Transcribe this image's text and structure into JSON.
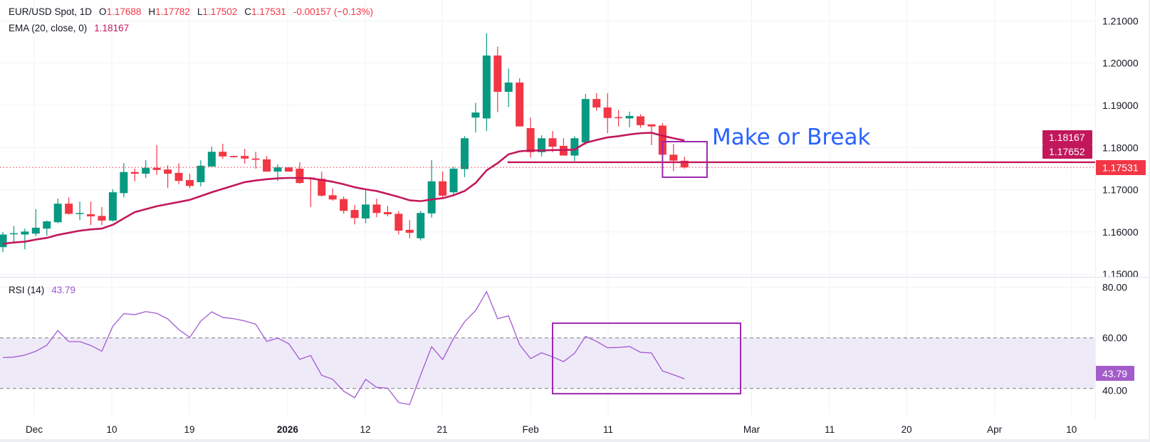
{
  "header": {
    "symbol": "EUR/USD Spot, 1D",
    "o_label": "O",
    "o_value": "1.17688",
    "h_label": "H",
    "h_value": "1.17782",
    "l_label": "L",
    "l_value": "1.17502",
    "c_label": "C",
    "c_value": "1.17531",
    "change": "-0.00157 (−0.13%)",
    "ema_label": "EMA (20, close, 0)",
    "ema_value": "1.18167",
    "rsi_label": "RSI (14)",
    "rsi_value": "43.79"
  },
  "colors": {
    "up": "#089981",
    "down": "#f23645",
    "ema": "#c2185b",
    "rsi": "#a15ad2",
    "annotation_box": "#9c27b0",
    "annotation_text": "#2962ff",
    "rsi_band": "#efeaf8"
  },
  "chart_data": [
    {
      "type": "candlestick",
      "title": "EUR/USD Spot, 1D",
      "ylim": [
        1.1495,
        1.2115
      ],
      "yticks": [
        1.21,
        1.2,
        1.19,
        1.18,
        1.17,
        1.16,
        1.15
      ],
      "ytick_labels": [
        "1.21000",
        "1.20000",
        "1.19000",
        "1.18000",
        "1.17000",
        "1.16000",
        "1.15000"
      ],
      "grid": true,
      "xaxis_labels": [
        {
          "bar": 2.85,
          "label": "Dec",
          "bold": false
        },
        {
          "bar": 9.91,
          "label": "10",
          "bold": false
        },
        {
          "bar": 16.97,
          "label": "19",
          "bold": false
        },
        {
          "bar": 25.9,
          "label": "2026",
          "bold": true
        },
        {
          "bar": 32.97,
          "label": "12",
          "bold": false
        },
        {
          "bar": 39.96,
          "label": "21",
          "bold": false
        },
        {
          "bar": 48.0,
          "label": "Feb",
          "bold": false
        },
        {
          "bar": 55.05,
          "label": "11",
          "bold": false
        },
        {
          "bar": 68.1,
          "label": "Mar",
          "bold": false
        },
        {
          "bar": 75.2,
          "label": "11",
          "bold": false
        },
        {
          "bar": 82.2,
          "label": "20",
          "bold": false
        },
        {
          "bar": 90.2,
          "label": "Apr",
          "bold": false
        },
        {
          "bar": 97.2,
          "label": "10",
          "bold": false
        }
      ],
      "ohlc": [
        [
          1.1564,
          1.16,
          1.1552,
          1.1594
        ],
        [
          1.1596,
          1.1614,
          1.1577,
          1.1597
        ],
        [
          1.1594,
          1.1608,
          1.1559,
          1.1601
        ],
        [
          1.1596,
          1.1654,
          1.159,
          1.161
        ],
        [
          1.1608,
          1.1627,
          1.1591,
          1.1625
        ],
        [
          1.1623,
          1.1679,
          1.1621,
          1.1667
        ],
        [
          1.1667,
          1.1682,
          1.1641,
          1.1643
        ],
        [
          1.1644,
          1.1672,
          1.1628,
          1.1645
        ],
        [
          1.1642,
          1.1672,
          1.1616,
          1.1637
        ],
        [
          1.1638,
          1.1659,
          1.1616,
          1.1627
        ],
        [
          1.1627,
          1.1701,
          1.1625,
          1.1694
        ],
        [
          1.1692,
          1.1763,
          1.1682,
          1.1742
        ],
        [
          1.1742,
          1.175,
          1.172,
          1.1738
        ],
        [
          1.1738,
          1.177,
          1.1728,
          1.1752
        ],
        [
          1.1752,
          1.1806,
          1.1735,
          1.1747
        ],
        [
          1.1748,
          1.1758,
          1.1704,
          1.1738
        ],
        [
          1.174,
          1.1763,
          1.1713,
          1.1721
        ],
        [
          1.1723,
          1.1738,
          1.1704,
          1.1709
        ],
        [
          1.1718,
          1.177,
          1.1708,
          1.1757
        ],
        [
          1.1755,
          1.1802,
          1.1755,
          1.179
        ],
        [
          1.179,
          1.1809,
          1.1773,
          1.1779
        ],
        [
          1.178,
          1.1781,
          1.1777,
          1.1777
        ],
        [
          1.178,
          1.1797,
          1.1762,
          1.1774
        ],
        [
          1.1774,
          1.179,
          1.175,
          1.1771
        ],
        [
          1.1772,
          1.178,
          1.1743,
          1.1743
        ],
        [
          1.1743,
          1.176,
          1.1721,
          1.1753
        ],
        [
          1.1753,
          1.1753,
          1.1743,
          1.1743
        ],
        [
          1.175,
          1.1765,
          1.1714,
          1.1716
        ],
        [
          1.1729,
          1.173,
          1.1659,
          1.1727
        ],
        [
          1.1726,
          1.1743,
          1.1684,
          1.1686
        ],
        [
          1.1687,
          1.1703,
          1.1674,
          1.1677
        ],
        [
          1.1678,
          1.1684,
          1.1643,
          1.165
        ],
        [
          1.1652,
          1.1664,
          1.1618,
          1.1633
        ],
        [
          1.1632,
          1.1699,
          1.1621,
          1.1665
        ],
        [
          1.1665,
          1.1679,
          1.1635,
          1.1645
        ],
        [
          1.1647,
          1.1662,
          1.1637,
          1.1642
        ],
        [
          1.1643,
          1.1649,
          1.1594,
          1.1603
        ],
        [
          1.1605,
          1.1628,
          1.1585,
          1.1598
        ],
        [
          1.1585,
          1.165,
          1.158,
          1.1645
        ],
        [
          1.1644,
          1.177,
          1.1634,
          1.172
        ],
        [
          1.172,
          1.1743,
          1.1679,
          1.1686
        ],
        [
          1.1694,
          1.1755,
          1.1685,
          1.175
        ],
        [
          1.1749,
          1.1827,
          1.173,
          1.1822
        ],
        [
          1.1871,
          1.1906,
          1.1836,
          1.1883
        ],
        [
          1.1869,
          1.2071,
          1.1839,
          1.2018
        ],
        [
          1.2018,
          1.2039,
          1.1884,
          1.1932
        ],
        [
          1.1932,
          1.1987,
          1.1896,
          1.1954
        ],
        [
          1.1954,
          1.1964,
          1.185,
          1.185
        ],
        [
          1.1846,
          1.1871,
          1.1776,
          1.1789
        ],
        [
          1.1789,
          1.1829,
          1.1779,
          1.1822
        ],
        [
          1.1822,
          1.1839,
          1.1789,
          1.1802
        ],
        [
          1.1804,
          1.1822,
          1.1781,
          1.1781
        ],
        [
          1.1781,
          1.1827,
          1.1768,
          1.1822
        ],
        [
          1.1812,
          1.1927,
          1.1806,
          1.1915
        ],
        [
          1.1915,
          1.1929,
          1.1887,
          1.1895
        ],
        [
          1.1895,
          1.1929,
          1.1834,
          1.187
        ],
        [
          1.1872,
          1.1889,
          1.185,
          1.1871
        ],
        [
          1.1869,
          1.1885,
          1.1848,
          1.1875
        ],
        [
          1.1874,
          1.1879,
          1.1847,
          1.1853
        ],
        [
          1.1855,
          1.1855,
          1.1806,
          1.185
        ],
        [
          1.1852,
          1.1858,
          1.178,
          1.1783
        ],
        [
          1.1783,
          1.1809,
          1.1744,
          1.1769
        ],
        [
          1.17688,
          1.17782,
          1.17502,
          1.17531
        ]
      ],
      "ema20": [
        1.1572,
        1.1575,
        1.1577,
        1.1582,
        1.1586,
        1.1593,
        1.1598,
        1.1603,
        1.1606,
        1.1608,
        1.1617,
        1.1632,
        1.1647,
        1.1654,
        1.1661,
        1.1666,
        1.1671,
        1.1676,
        1.1685,
        1.1694,
        1.1702,
        1.171,
        1.1718,
        1.1722,
        1.1725,
        1.1727,
        1.1728,
        1.1728,
        1.1727,
        1.1723,
        1.1719,
        1.1713,
        1.1706,
        1.1701,
        1.1697,
        1.169,
        1.1683,
        1.1675,
        1.1673,
        1.1677,
        1.168,
        1.1687,
        1.1697,
        1.1716,
        1.1746,
        1.1763,
        1.1784,
        1.1791,
        1.1793,
        1.1793,
        1.1794,
        1.1794,
        1.1795,
        1.1811,
        1.1818,
        1.1824,
        1.1827,
        1.1831,
        1.1834,
        1.1835,
        1.1828,
        1.1822,
        1.18167
      ],
      "price_labels": [
        {
          "value": 1.18167,
          "label": "1.18167",
          "kind": "ema"
        },
        {
          "value": 1.17652,
          "label": "1.17652",
          "kind": "level"
        },
        {
          "value": 1.17531,
          "label": "1.17531",
          "kind": "last"
        }
      ],
      "annotations": {
        "level_line": {
          "value": 1.17652,
          "from_bar": 45.9
        },
        "box": {
          "bar_from": 60.0,
          "bar_to": 64.05,
          "price_top": 1.1814,
          "price_bottom": 1.17297
        },
        "text": "Make or Break"
      }
    },
    {
      "type": "line",
      "title": "RSI (14)",
      "ylim": [
        27,
        82.5
      ],
      "yticks": [
        80,
        60,
        40
      ],
      "ytick_labels": [
        "80.00",
        "60.00",
        "40.00"
      ],
      "band": [
        40,
        60
      ],
      "last_label": "43.79",
      "values": [
        52.2,
        52.4,
        53.2,
        54.7,
        57.1,
        62.9,
        58.5,
        58.5,
        57.0,
        54.7,
        64.6,
        69.6,
        69.2,
        70.4,
        69.7,
        67.5,
        63.3,
        60.2,
        66.6,
        70.3,
        68.1,
        67.6,
        66.7,
        65.4,
        58.6,
        59.9,
        57.7,
        51.5,
        53.0,
        45.2,
        43.6,
        38.9,
        36.3,
        43.6,
        40.4,
        40.1,
        34.4,
        33.6,
        45.3,
        56.5,
        51.4,
        59.8,
        66.4,
        70.8,
        78.3,
        67.6,
        68.7,
        57.3,
        51.8,
        54.1,
        52.5,
        50.6,
        53.9,
        60.6,
        58.6,
        56.1,
        56.2,
        56.6,
        54.3,
        54.0,
        46.9,
        45.4,
        43.79
      ],
      "annotations": {
        "box": {
          "bar_from": 50.0,
          "bar_to": 67.1,
          "value_top": 65.8,
          "value_bottom": 37.9
        }
      }
    }
  ]
}
